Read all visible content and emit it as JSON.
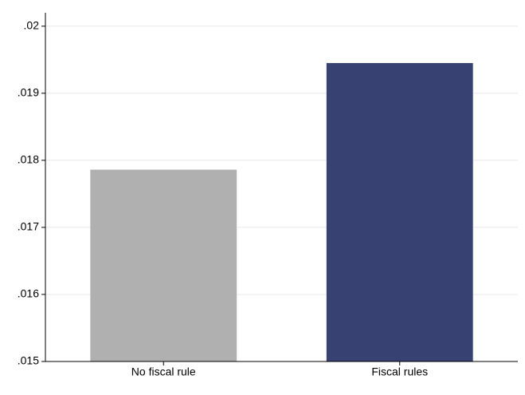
{
  "chart_data": {
    "type": "bar",
    "categories": [
      "No fiscal rule",
      "Fiscal rules"
    ],
    "values": [
      0.01786,
      0.01945
    ],
    "colors": [
      "#b0b0b0",
      "#384272"
    ],
    "ylim": [
      0.015,
      0.0202
    ],
    "yticks": [
      {
        "value": 0.015,
        "label": ".015"
      },
      {
        "value": 0.016,
        "label": ".016"
      },
      {
        "value": 0.017,
        "label": ".017"
      },
      {
        "value": 0.018,
        "label": ".018"
      },
      {
        "value": 0.019,
        "label": ".019"
      },
      {
        "value": 0.02,
        "label": ".02"
      }
    ],
    "grid": true
  }
}
